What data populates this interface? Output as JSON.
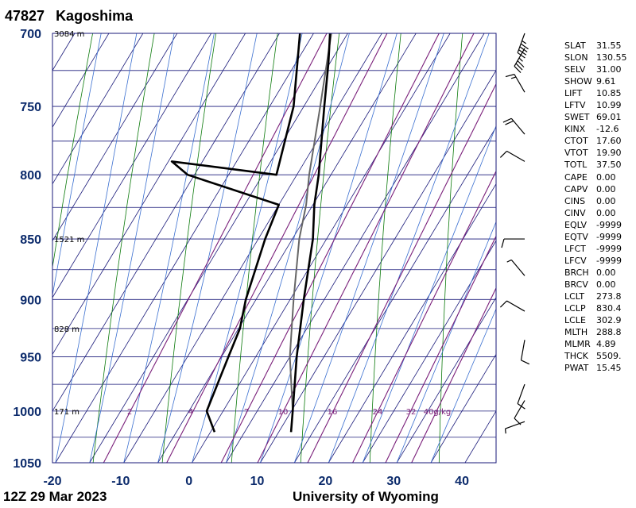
{
  "header": {
    "station_id": "47827",
    "station_name": "Kagoshima"
  },
  "footer": {
    "time": "12Z 29 Mar 2023",
    "credit": "University of Wyoming"
  },
  "chart_data": {
    "type": "skew-t",
    "xlim": [
      -20,
      45
    ],
    "ylim": [
      1050,
      700
    ],
    "log_pressure": true,
    "pressure_ticks": [
      700,
      750,
      800,
      850,
      900,
      950,
      1000,
      1050
    ],
    "temperature_ticks": [
      -20,
      -10,
      0,
      10,
      20,
      30,
      40
    ],
    "height_labels": [
      {
        "p": 700,
        "label": "3084 m"
      },
      {
        "p": 850,
        "label": "1521 m"
      },
      {
        "p": 925,
        "label": "828 m"
      },
      {
        "p": 1000,
        "label": "171 m"
      }
    ],
    "mixing_ratio_labels": [
      "2",
      "4",
      "7",
      "10",
      "16",
      "24",
      "32",
      "40g/kg"
    ],
    "mixing_ratios": [
      2,
      4,
      7,
      10,
      16,
      24,
      32,
      40
    ],
    "temperature_profile": [
      {
        "p": 1020,
        "t": 16.8
      },
      {
        "p": 1000,
        "t": 15.2
      },
      {
        "p": 950,
        "t": 11.0
      },
      {
        "p": 900,
        "t": 7.0
      },
      {
        "p": 850,
        "t": 3.0
      },
      {
        "p": 823,
        "t": 0.2
      },
      {
        "p": 800,
        "t": -1.8
      },
      {
        "p": 750,
        "t": -7.0
      },
      {
        "p": 720,
        "t": -10.2
      },
      {
        "p": 700,
        "t": -12.6
      }
    ],
    "dewpoint_profile": [
      {
        "p": 1020,
        "t": 5.6
      },
      {
        "p": 1000,
        "t": 2.6
      },
      {
        "p": 950,
        "t": 1.0
      },
      {
        "p": 925,
        "t": 0.2
      },
      {
        "p": 900,
        "t": -1.5
      },
      {
        "p": 850,
        "t": -4.0
      },
      {
        "p": 823,
        "t": -5.0
      },
      {
        "p": 800,
        "t": -21.0
      },
      {
        "p": 790,
        "t": -24.5
      },
      {
        "p": 800,
        "t": -8.0
      },
      {
        "p": 750,
        "t": -11.5
      },
      {
        "p": 700,
        "t": -17.0
      }
    ],
    "parcel_profile": [
      {
        "p": 1020,
        "t": 16.8
      },
      {
        "p": 1000,
        "t": 15.2
      },
      {
        "p": 950,
        "t": 10.0
      },
      {
        "p": 900,
        "t": 5.5
      },
      {
        "p": 850,
        "t": 1.0
      },
      {
        "p": 823,
        "t": -1.0
      },
      {
        "p": 800,
        "t": -3.2
      },
      {
        "p": 750,
        "t": -7.6
      },
      {
        "p": 700,
        "t": -12.4
      }
    ],
    "wind_barbs": [
      {
        "p": 700,
        "dir": 200,
        "spd": 45
      },
      {
        "p": 710,
        "dir": 210,
        "spd": 35
      },
      {
        "p": 740,
        "dir": 330,
        "spd": 15
      },
      {
        "p": 770,
        "dir": 320,
        "spd": 20
      },
      {
        "p": 790,
        "dir": 300,
        "spd": 10
      },
      {
        "p": 850,
        "dir": 270,
        "spd": 10
      },
      {
        "p": 880,
        "dir": 320,
        "spd": 5
      },
      {
        "p": 910,
        "dir": 300,
        "spd": 10
      },
      {
        "p": 935,
        "dir": 190,
        "spd": 10
      },
      {
        "p": 975,
        "dir": 200,
        "spd": 10
      },
      {
        "p": 990,
        "dir": 210,
        "spd": 10
      },
      {
        "p": 1010,
        "dir": 250,
        "spd": 5
      }
    ]
  },
  "indices": [
    {
      "key": "SLAT",
      "value": "31.55"
    },
    {
      "key": "SLON",
      "value": "130.55"
    },
    {
      "key": "SELV",
      "value": "31.00"
    },
    {
      "key": "SHOW",
      "value": "9.61"
    },
    {
      "key": "LIFT",
      "value": "10.85"
    },
    {
      "key": "LFTV",
      "value": "10.99"
    },
    {
      "key": "SWET",
      "value": "69.01"
    },
    {
      "key": "KINX",
      "value": "-12.6"
    },
    {
      "key": "CTOT",
      "value": "17.60"
    },
    {
      "key": "VTOT",
      "value": "19.90"
    },
    {
      "key": "TOTL",
      "value": "37.50"
    },
    {
      "key": "CAPE",
      "value": "0.00"
    },
    {
      "key": "CAPV",
      "value": "0.00"
    },
    {
      "key": "CINS",
      "value": "0.00"
    },
    {
      "key": "CINV",
      "value": "0.00"
    },
    {
      "key": "EQLV",
      "value": "-9999"
    },
    {
      "key": "EQTV",
      "value": "-9999"
    },
    {
      "key": "LFCT",
      "value": "-9999"
    },
    {
      "key": "LFCV",
      "value": "-9999"
    },
    {
      "key": "BRCH",
      "value": "0.00"
    },
    {
      "key": "BRCV",
      "value": "0.00"
    },
    {
      "key": "LCLT",
      "value": "273.8"
    },
    {
      "key": "LCLP",
      "value": "830.4"
    },
    {
      "key": "LCLE",
      "value": "302.9"
    },
    {
      "key": "MLTH",
      "value": "288.8"
    },
    {
      "key": "MLMR",
      "value": "4.89"
    },
    {
      "key": "THCK",
      "value": "5509."
    },
    {
      "key": "PWAT",
      "value": "15.45"
    }
  ],
  "colors": {
    "frame": "#1a1a7a",
    "isotherm": "#1a1a7a",
    "isobar": "#1a1a7a",
    "dry_adiabat": "#0b7a0b",
    "moist_adiabat": "#3a6fd0",
    "mixing_ratio": "#7a1f7a",
    "temperature": "#000000",
    "parcel": "#666666"
  }
}
